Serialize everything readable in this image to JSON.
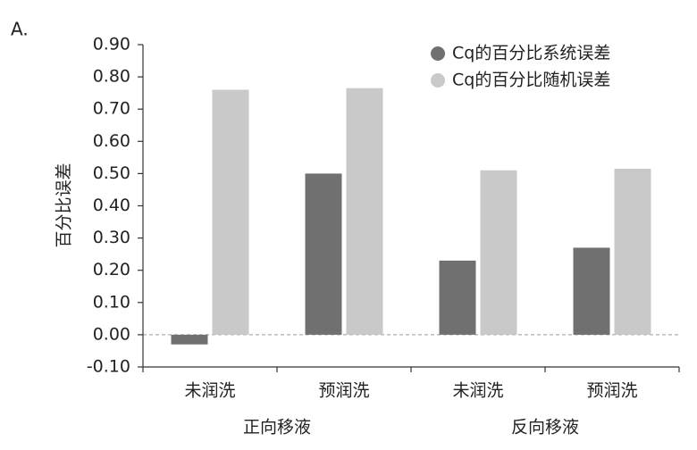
{
  "chart_data": {
    "type": "bar",
    "panel_label": "A.",
    "y_label": "百分比误差",
    "categories": [
      "未润洗",
      "预润洗",
      "未润洗",
      "预润洗"
    ],
    "groups": [
      "正向移液",
      "反向移液"
    ],
    "series": [
      {
        "name": "Cq的百分比系统误差",
        "color": "#6f706f",
        "values": [
          -0.03,
          0.5,
          0.23,
          0.27
        ]
      },
      {
        "name": "Cq的百分比随机误差",
        "color": "#c9c9c9",
        "values": [
          0.76,
          0.765,
          0.51,
          0.515
        ]
      }
    ],
    "ylim": [
      -0.1,
      0.9
    ],
    "yticks": [
      {
        "value": -0.1,
        "label": "-0.10"
      },
      {
        "value": 0,
        "label": "0.00"
      },
      {
        "value": 0.1,
        "label": "0.10"
      },
      {
        "value": 0.2,
        "label": "0.20"
      },
      {
        "value": 0.3,
        "label": "0.30"
      },
      {
        "value": 0.4,
        "label": "0.40"
      },
      {
        "value": 0.5,
        "label": "0.50"
      },
      {
        "value": 0.6,
        "label": "0.60"
      },
      {
        "value": 0.7,
        "label": "0.70"
      },
      {
        "value": 0.8,
        "label": "0.80"
      },
      {
        "value": 0.9,
        "label": "0.90"
      }
    ],
    "legend": "top-right",
    "grid": false
  }
}
